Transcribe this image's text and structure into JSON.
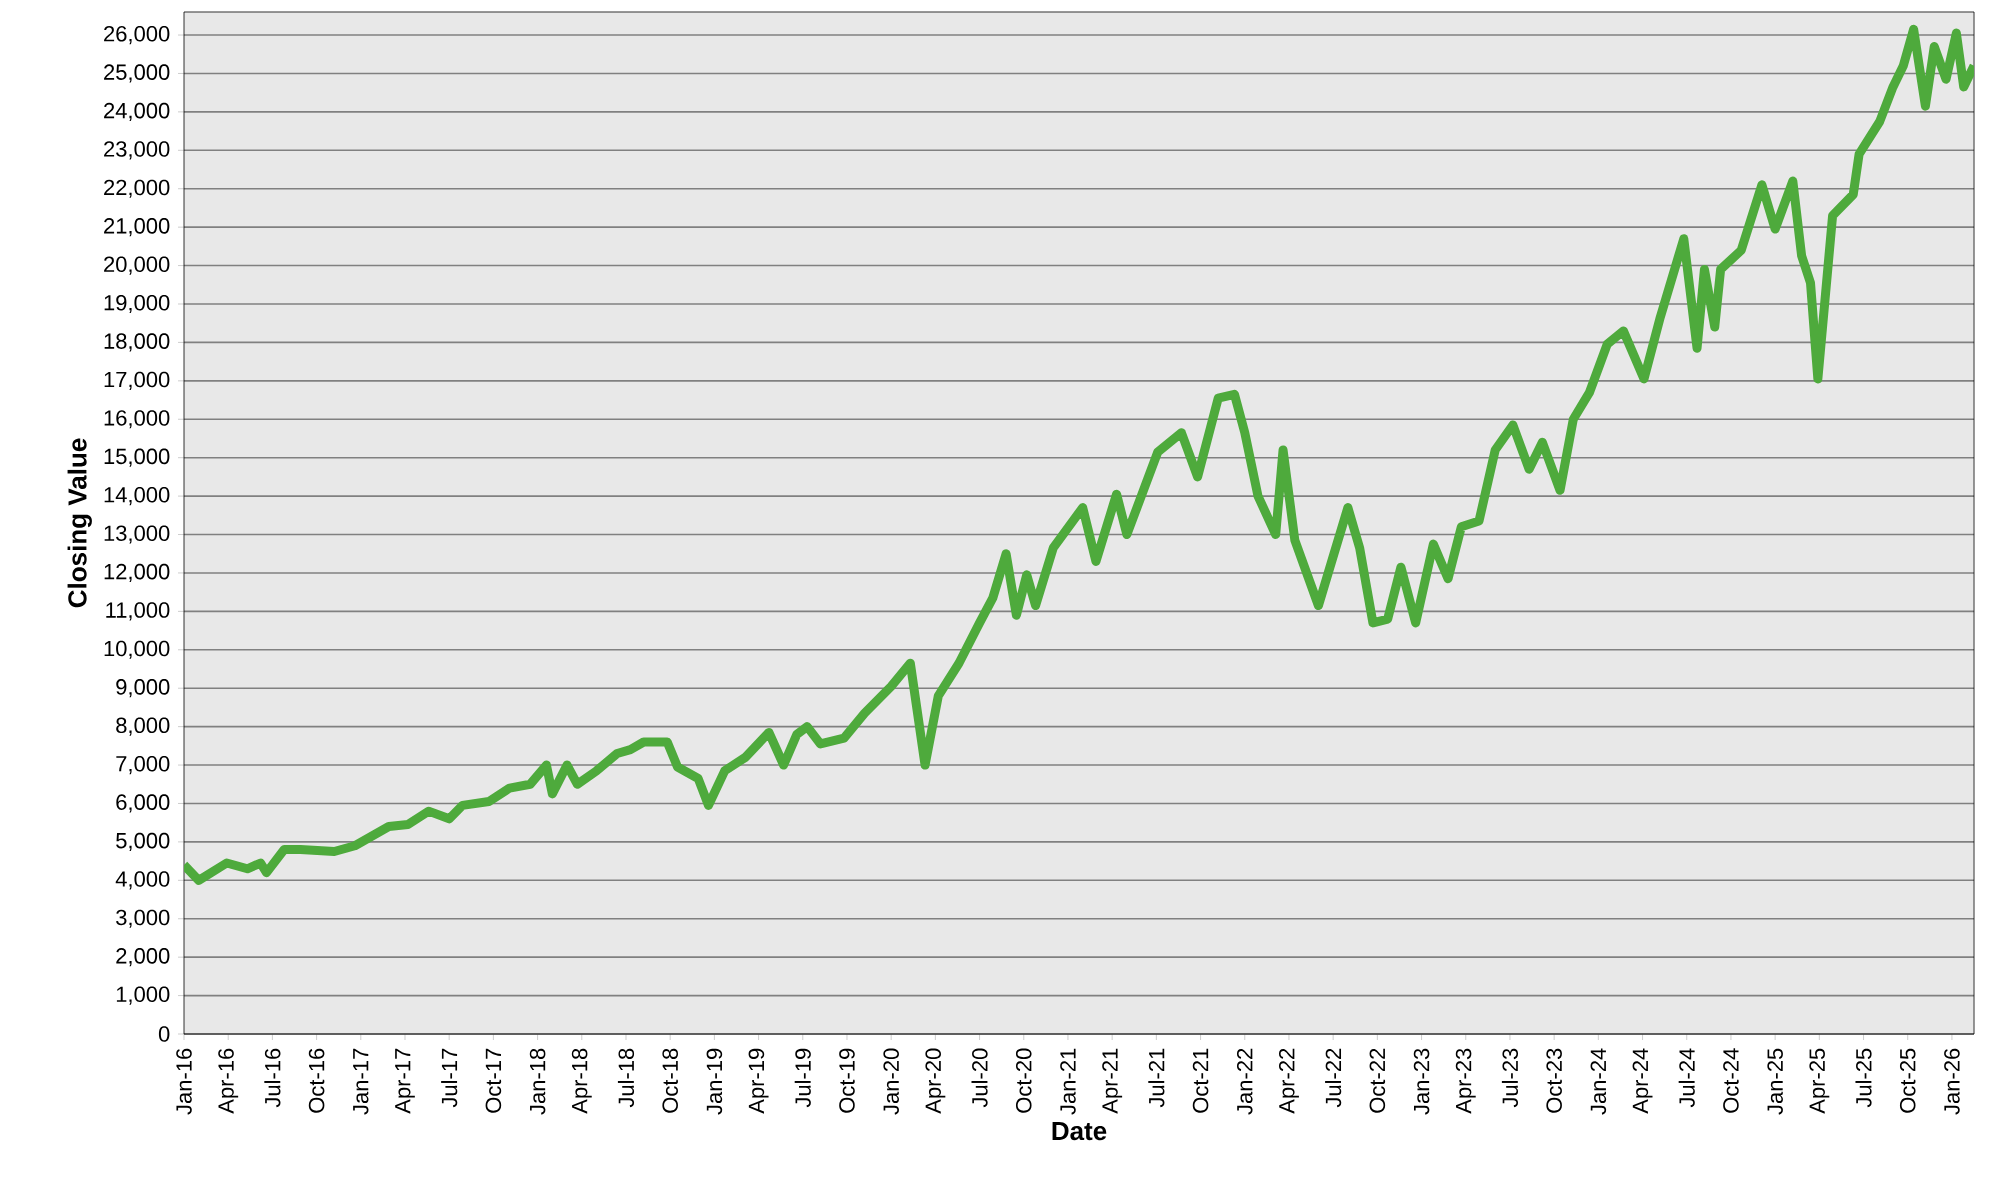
{
  "chart_data": {
    "type": "line",
    "xlabel": "Date",
    "ylabel": "Closing Value",
    "grid": "y",
    "xlim": [
      "2016-01-01",
      "2026-02-16"
    ],
    "ylim": [
      0,
      26600
    ],
    "xticks": [
      {
        "value": "2016-01-01",
        "label": "Jan-16"
      },
      {
        "value": "2016-04-01",
        "label": "Apr-16"
      },
      {
        "value": "2016-07-01",
        "label": "Jul-16"
      },
      {
        "value": "2016-10-01",
        "label": "Oct-16"
      },
      {
        "value": "2017-01-01",
        "label": "Jan-17"
      },
      {
        "value": "2017-04-01",
        "label": "Apr-17"
      },
      {
        "value": "2017-07-01",
        "label": "Jul-17"
      },
      {
        "value": "2017-10-01",
        "label": "Oct-17"
      },
      {
        "value": "2018-01-01",
        "label": "Jan-18"
      },
      {
        "value": "2018-04-01",
        "label": "Apr-18"
      },
      {
        "value": "2018-07-01",
        "label": "Jul-18"
      },
      {
        "value": "2018-10-01",
        "label": "Oct-18"
      },
      {
        "value": "2019-01-01",
        "label": "Jan-19"
      },
      {
        "value": "2019-04-01",
        "label": "Apr-19"
      },
      {
        "value": "2019-07-01",
        "label": "Jul-19"
      },
      {
        "value": "2019-10-01",
        "label": "Oct-19"
      },
      {
        "value": "2020-01-01",
        "label": "Jan-20"
      },
      {
        "value": "2020-04-01",
        "label": "Apr-20"
      },
      {
        "value": "2020-07-01",
        "label": "Jul-20"
      },
      {
        "value": "2020-10-01",
        "label": "Oct-20"
      },
      {
        "value": "2021-01-01",
        "label": "Jan-21"
      },
      {
        "value": "2021-04-01",
        "label": "Apr-21"
      },
      {
        "value": "2021-07-01",
        "label": "Jul-21"
      },
      {
        "value": "2021-10-01",
        "label": "Oct-21"
      },
      {
        "value": "2022-01-01",
        "label": "Jan-22"
      },
      {
        "value": "2022-04-01",
        "label": "Apr-22"
      },
      {
        "value": "2022-07-01",
        "label": "Jul-22"
      },
      {
        "value": "2022-10-01",
        "label": "Oct-22"
      },
      {
        "value": "2023-01-01",
        "label": "Jan-23"
      },
      {
        "value": "2023-04-01",
        "label": "Apr-23"
      },
      {
        "value": "2023-07-01",
        "label": "Jul-23"
      },
      {
        "value": "2023-10-01",
        "label": "Oct-23"
      },
      {
        "value": "2024-01-01",
        "label": "Jan-24"
      },
      {
        "value": "2024-04-01",
        "label": "Apr-24"
      },
      {
        "value": "2024-07-01",
        "label": "Jul-24"
      },
      {
        "value": "2024-10-01",
        "label": "Oct-24"
      },
      {
        "value": "2025-01-01",
        "label": "Jan-25"
      },
      {
        "value": "2025-04-01",
        "label": "Apr-25"
      },
      {
        "value": "2025-07-01",
        "label": "Jul-25"
      },
      {
        "value": "2025-10-01",
        "label": "Oct-25"
      },
      {
        "value": "2026-01-01",
        "label": "Jan-26"
      }
    ],
    "yticks": [
      0,
      {
        "value": 1000,
        "label": "1,000"
      },
      {
        "value": 2000,
        "label": "2,000"
      },
      {
        "value": 3000,
        "label": "3,000"
      },
      {
        "value": 4000,
        "label": "4,000"
      },
      {
        "value": 5000,
        "label": "5,000"
      },
      {
        "value": 6000,
        "label": "6,000"
      },
      {
        "value": 7000,
        "label": "7,000"
      },
      {
        "value": 8000,
        "label": "8,000"
      },
      {
        "value": 9000,
        "label": "9,000"
      },
      {
        "value": 10000,
        "label": "10,000"
      },
      {
        "value": 11000,
        "label": "11,000"
      },
      {
        "value": 12000,
        "label": "12,000"
      },
      {
        "value": 13000,
        "label": "13,000"
      },
      {
        "value": 14000,
        "label": "14,000"
      },
      {
        "value": 15000,
        "label": "15,000"
      },
      {
        "value": 16000,
        "label": "16,000"
      },
      {
        "value": 17000,
        "label": "17,000"
      },
      {
        "value": 18000,
        "label": "18,000"
      },
      {
        "value": 19000,
        "label": "19,000"
      },
      {
        "value": 20000,
        "label": "20,000"
      },
      {
        "value": 21000,
        "label": "21,000"
      },
      {
        "value": 22000,
        "label": "22,000"
      },
      {
        "value": 23000,
        "label": "23,000"
      },
      {
        "value": 24000,
        "label": "24,000"
      },
      {
        "value": 25000,
        "label": "25,000"
      },
      {
        "value": 26000,
        "label": "26,000"
      }
    ],
    "x": [
      "2016-01-01",
      "2016-02-01",
      "2016-03-28",
      "2016-05-10",
      "2016-06-07",
      "2016-06-19",
      "2016-07-25",
      "2016-08-28",
      "2016-11-07",
      "2016-12-19",
      "2017-02-28",
      "2017-04-07",
      "2017-05-19",
      "2017-07-01",
      "2017-07-28",
      "2017-09-22",
      "2017-11-04",
      "2017-12-16",
      "2018-01-19",
      "2018-02-01",
      "2018-03-01",
      "2018-03-22",
      "2018-05-01",
      "2018-06-13",
      "2018-07-10",
      "2018-08-07",
      "2018-09-25",
      "2018-10-16",
      "2018-11-28",
      "2018-12-19",
      "2019-01-22",
      "2019-03-04",
      "2019-04-22",
      "2019-05-22",
      "2019-06-19",
      "2019-07-10",
      "2019-08-07",
      "2019-09-25",
      "2019-11-07",
      "2020-01-01",
      "2020-02-10",
      "2020-03-10",
      "2020-04-07",
      "2020-05-19",
      "2020-07-01",
      "2020-07-28",
      "2020-08-25",
      "2020-09-16",
      "2020-10-07",
      "2020-10-25",
      "2020-12-01",
      "2021-02-01",
      "2021-02-28",
      "2021-04-10",
      "2021-05-01",
      "2021-07-04",
      "2021-08-22",
      "2021-09-25",
      "2021-11-07",
      "2021-12-10",
      "2022-01-01",
      "2022-01-28",
      "2022-03-04",
      "2022-03-19",
      "2022-04-13",
      "2022-06-01",
      "2022-06-28",
      "2022-08-01",
      "2022-08-25",
      "2022-09-22",
      "2022-10-22",
      "2022-11-19",
      "2022-12-19",
      "2023-01-25",
      "2023-02-25",
      "2023-03-22",
      "2023-04-28",
      "2023-06-01",
      "2023-07-07",
      "2023-08-10",
      "2023-09-07",
      "2023-10-13",
      "2023-11-10",
      "2023-12-13",
      "2024-01-19",
      "2024-02-22",
      "2024-04-04",
      "2024-05-07",
      "2024-06-25",
      "2024-07-22",
      "2024-08-07",
      "2024-08-28",
      "2024-09-10",
      "2024-10-22",
      "2024-12-04",
      "2025-01-01",
      "2025-02-07",
      "2025-02-25",
      "2025-03-13",
      "2025-03-28",
      "2025-04-28",
      "2025-06-10",
      "2025-06-22",
      "2025-08-04",
      "2025-09-01",
      "2025-09-22",
      "2025-10-13",
      "2025-11-07",
      "2025-11-25",
      "2025-12-19",
      "2026-01-10",
      "2026-01-25",
      "2026-02-16"
    ],
    "series": [
      {
        "color": "#4eaa3c",
        "values": [
          4400,
          4000,
          4450,
          4300,
          4450,
          4200,
          4800,
          4800,
          4750,
          4900,
          5400,
          5450,
          5800,
          5600,
          5950,
          6050,
          6400,
          6500,
          7000,
          6250,
          7000,
          6500,
          6850,
          7300,
          7400,
          7600,
          7600,
          6950,
          6650,
          5950,
          6850,
          7200,
          7850,
          7000,
          7800,
          8000,
          7550,
          7700,
          8350,
          9050,
          9650,
          7000,
          8800,
          9650,
          10700,
          11350,
          12500,
          10900,
          11950,
          11150,
          12650,
          13700,
          12300,
          14050,
          13000,
          15150,
          15650,
          14500,
          16550,
          16650,
          15650,
          14000,
          13000,
          15200,
          12850,
          11150,
          12300,
          13700,
          12650,
          10700,
          10800,
          12150,
          10700,
          12750,
          11850,
          13200,
          13350,
          15200,
          15850,
          14700,
          15400,
          14150,
          16000,
          16700,
          17950,
          18300,
          17050,
          18650,
          20700,
          17850,
          19900,
          18400,
          19900,
          20400,
          22100,
          20950,
          22200,
          20250,
          19550,
          17050,
          21300,
          21850,
          22900,
          23750,
          24650,
          25200,
          26150,
          24150,
          25700,
          24850,
          26050,
          24650,
          25200
        ]
      }
    ]
  }
}
